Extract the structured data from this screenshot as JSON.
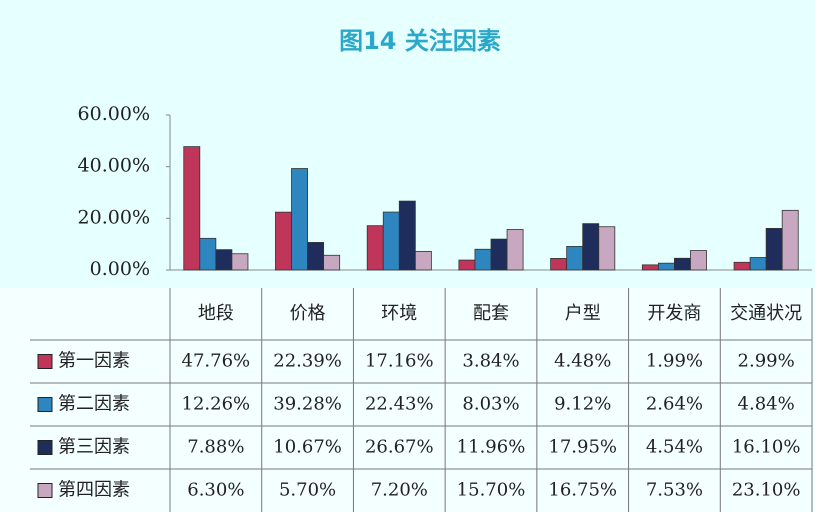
{
  "chart_data": {
    "type": "bar",
    "title": "图14 关注因素",
    "categories": [
      "地段",
      "价格",
      "环境",
      "配套",
      "户型",
      "开发商",
      "交通状况"
    ],
    "ylim": [
      0,
      60
    ],
    "yticks": [
      {
        "value": 0,
        "label": "0.00%"
      },
      {
        "value": 20,
        "label": "20.00%"
      },
      {
        "value": 40,
        "label": "40.00%"
      },
      {
        "value": 60,
        "label": "60.00%"
      }
    ],
    "series": [
      {
        "name": "第一因素",
        "color": "#c0365a",
        "values": [
          47.76,
          22.39,
          17.16,
          3.84,
          4.48,
          1.99,
          2.99
        ],
        "value_labels": [
          "47.76%",
          "22.39%",
          "17.16%",
          "3.84%",
          "4.48%",
          "1.99%",
          "2.99%"
        ]
      },
      {
        "name": "第二因素",
        "color": "#2e86c1",
        "values": [
          12.26,
          39.28,
          22.43,
          8.03,
          9.12,
          2.64,
          4.84
        ],
        "value_labels": [
          "12.26%",
          "39.28%",
          "22.43%",
          "8.03%",
          "9.12%",
          "2.64%",
          "4.84%"
        ]
      },
      {
        "name": "第三因素",
        "color": "#1f2d5c",
        "values": [
          7.88,
          10.67,
          26.67,
          11.96,
          17.95,
          4.54,
          16.1
        ],
        "value_labels": [
          "7.88%",
          "10.67%",
          "26.67%",
          "11.96%",
          "17.95%",
          "4.54%",
          "16.10%"
        ]
      },
      {
        "name": "第四因素",
        "color": "#c8a8c0",
        "values": [
          6.3,
          5.7,
          7.2,
          15.7,
          16.75,
          7.53,
          23.1
        ],
        "value_labels": [
          "6.30%",
          "5.70%",
          "7.20%",
          "15.70%",
          "16.75%",
          "7.53%",
          "23.10%"
        ]
      }
    ]
  }
}
